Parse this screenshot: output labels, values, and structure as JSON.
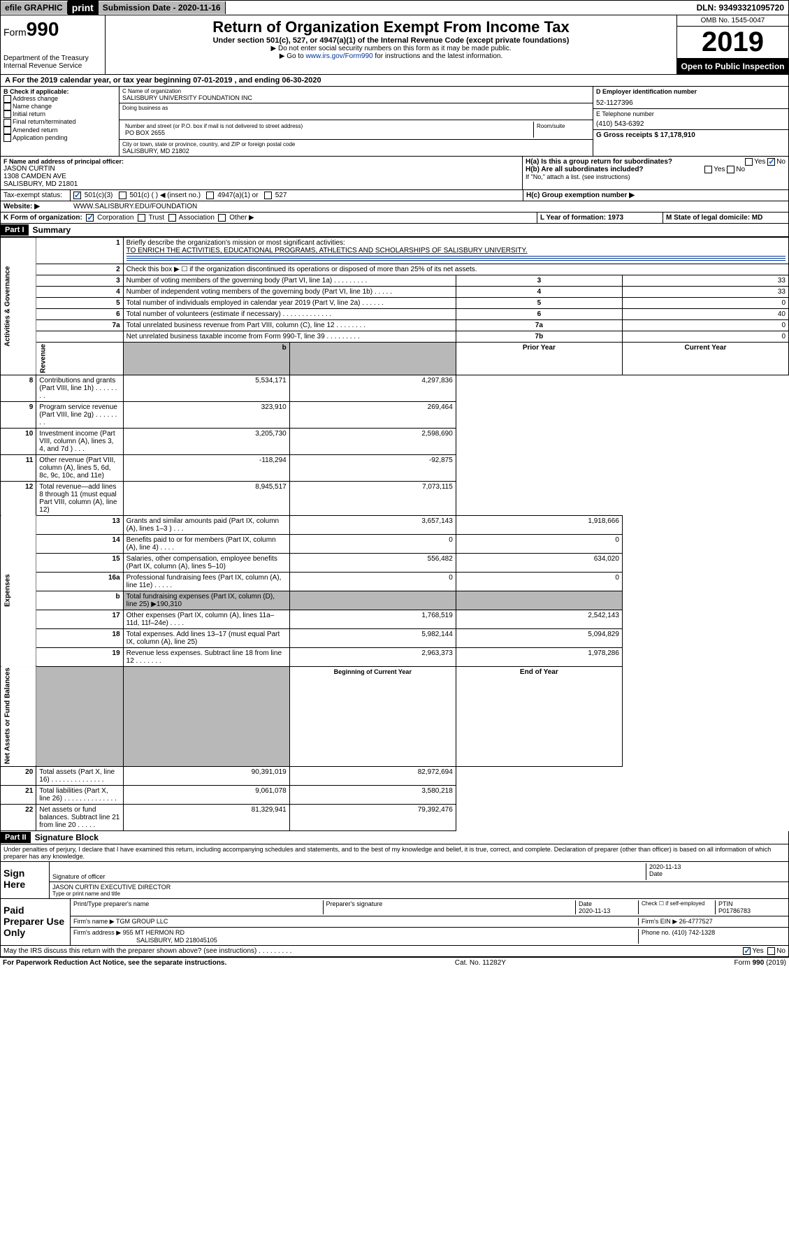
{
  "topbar": {
    "efile": "efile GRAPHIC",
    "print": "print",
    "submission": "Submission Date - 2020-11-16",
    "dln": "DLN: 93493321095720"
  },
  "header": {
    "form_prefix": "Form",
    "form_num": "990",
    "dept": "Department of the Treasury Internal Revenue Service",
    "title": "Return of Organization Exempt From Income Tax",
    "subtitle": "Under section 501(c), 527, or 4947(a)(1) of the Internal Revenue Code (except private foundations)",
    "note1": "▶ Do not enter social security numbers on this form as it may be made public.",
    "note2_pre": "▶ Go to ",
    "note2_link": "www.irs.gov/Form990",
    "note2_post": " for instructions and the latest information.",
    "omb": "OMB No. 1545-0047",
    "year": "2019",
    "open": "Open to Public Inspection"
  },
  "period": "A For the 2019 calendar year, or tax year beginning 07-01-2019    , and ending 06-30-2020",
  "checkboxes": {
    "title": "B Check if applicable:",
    "items": [
      "Address change",
      "Name change",
      "Initial return",
      "Final return/terminated",
      "Amended return",
      "Application pending"
    ]
  },
  "org": {
    "name_label": "C Name of organization",
    "name": "SALISBURY UNIVERSITY FOUNDATION INC",
    "dba_label": "Doing business as",
    "addr_label": "Number and street (or P.O. box if mail is not delivered to street address)",
    "room_label": "Room/suite",
    "addr": "PO BOX 2655",
    "city_label": "City or town, state or province, country, and ZIP or foreign postal code",
    "city": "SALISBURY, MD  21802"
  },
  "right": {
    "ein_label": "D Employer identification number",
    "ein": "52-1127396",
    "phone_label": "E Telephone number",
    "phone": "(410) 543-6392",
    "gross_label": "G Gross receipts $ 17,178,910"
  },
  "officer": {
    "label": "F  Name and address of principal officer:",
    "name": "JASON CURTIN",
    "addr1": "1308 CAMDEN AVE",
    "addr2": "SALISBURY, MD  21801"
  },
  "h": {
    "a": "H(a)  Is this a group return for subordinates?",
    "b": "H(b)  Are all subordinates included?",
    "note": "If \"No,\" attach a list. (see instructions)",
    "c": "H(c)  Group exemption number ▶"
  },
  "status": {
    "label": "Tax-exempt status:",
    "opt1": "501(c)(3)",
    "opt2": "501(c) (  ) ◀ (insert no.)",
    "opt3": "4947(a)(1) or",
    "opt4": "527"
  },
  "website": {
    "label": "Website: ▶",
    "value": "WWW.SALISBURY.EDU/FOUNDATION"
  },
  "k": {
    "label": "K Form of organization:",
    "opts": [
      "Corporation",
      "Trust",
      "Association",
      "Other ▶"
    ]
  },
  "l": {
    "label": "L Year of formation: 1973"
  },
  "m": {
    "label": "M State of legal domicile: MD"
  },
  "part1": {
    "header": "Part I",
    "title": "Summary",
    "q1": "Briefly describe the organization's mission or most significant activities:",
    "mission": "TO ENRICH THE ACTIVITIES, EDUCATIONAL PROGRAMS, ATHLETICS AND SCHOLARSHIPS OF SALISBURY UNIVERSITY.",
    "q2": "Check this box ▶ ☐  if the organization discontinued its operations or disposed of more than 25% of its net assets.",
    "rows_gov": [
      {
        "n": "3",
        "t": "Number of voting members of the governing body (Part VI, line 1a)   .   .   .   .   .   .   .   .   .",
        "rn": "3",
        "v": "33"
      },
      {
        "n": "4",
        "t": "Number of independent voting members of the governing body (Part VI, line 1b)   .   .   .   .   .",
        "rn": "4",
        "v": "33"
      },
      {
        "n": "5",
        "t": "Total number of individuals employed in calendar year 2019 (Part V, line 2a)   .   .   .   .   .   .",
        "rn": "5",
        "v": "0"
      },
      {
        "n": "6",
        "t": "Total number of volunteers (estimate if necessary)   .   .   .   .   .   .   .   .   .   .   .   .   .",
        "rn": "6",
        "v": "40"
      },
      {
        "n": "7a",
        "t": "Total unrelated business revenue from Part VIII, column (C), line 12   .   .   .   .   .   .   .   .",
        "rn": "7a",
        "v": "0"
      },
      {
        "n": "",
        "t": "Net unrelated business taxable income from Form 990-T, line 39   .   .   .   .   .   .   .   .   .",
        "rn": "7b",
        "v": "0"
      }
    ],
    "prior_hdr": "Prior Year",
    "current_hdr": "Current Year",
    "rows_rev": [
      {
        "n": "8",
        "t": "Contributions and grants (Part VIII, line 1h)   .   .   .   .   .   .   .   .",
        "p": "5,534,171",
        "c": "4,297,836"
      },
      {
        "n": "9",
        "t": "Program service revenue (Part VIII, line 2g)   .   .   .   .   .   .   .   .",
        "p": "323,910",
        "c": "269,464"
      },
      {
        "n": "10",
        "t": "Investment income (Part VIII, column (A), lines 3, 4, and 7d )   .   .   .",
        "p": "3,205,730",
        "c": "2,598,690"
      },
      {
        "n": "11",
        "t": "Other revenue (Part VIII, column (A), lines 5, 6d, 8c, 9c, 10c, and 11e)",
        "p": "-118,294",
        "c": "-92,875"
      },
      {
        "n": "12",
        "t": "Total revenue—add lines 8 through 11 (must equal Part VIII, column (A), line 12)",
        "p": "8,945,517",
        "c": "7,073,115"
      }
    ],
    "rows_exp": [
      {
        "n": "13",
        "t": "Grants and similar amounts paid (Part IX, column (A), lines 1–3 )   .   .   .",
        "p": "3,657,143",
        "c": "1,918,666"
      },
      {
        "n": "14",
        "t": "Benefits paid to or for members (Part IX, column (A), line 4)   .   .   .   .",
        "p": "0",
        "c": "0"
      },
      {
        "n": "15",
        "t": "Salaries, other compensation, employee benefits (Part IX, column (A), lines 5–10)",
        "p": "556,482",
        "c": "634,020"
      },
      {
        "n": "16a",
        "t": "Professional fundraising fees (Part IX, column (A), line 11e)   .   .   .   .   .",
        "p": "0",
        "c": "0"
      },
      {
        "n": "b",
        "t": "Total fundraising expenses (Part IX, column (D), line 25) ▶190,310",
        "p": "",
        "c": ""
      },
      {
        "n": "17",
        "t": "Other expenses (Part IX, column (A), lines 11a–11d, 11f–24e)   .   .   .   .",
        "p": "1,768,519",
        "c": "2,542,143"
      },
      {
        "n": "18",
        "t": "Total expenses. Add lines 13–17 (must equal Part IX, column (A), line 25)",
        "p": "5,982,144",
        "c": "5,094,829"
      },
      {
        "n": "19",
        "t": "Revenue less expenses. Subtract line 18 from line 12   .   .   .   .   .   .   .",
        "p": "2,963,373",
        "c": "1,978,286"
      }
    ],
    "beg_hdr": "Beginning of Current Year",
    "end_hdr": "End of Year",
    "rows_net": [
      {
        "n": "20",
        "t": "Total assets (Part X, line 16)   .   .   .   .   .   .   .   .   .   .   .   .   .   .",
        "p": "90,391,019",
        "c": "82,972,694"
      },
      {
        "n": "21",
        "t": "Total liabilities (Part X, line 26)   .   .   .   .   .   .   .   .   .   .   .   .   .   .",
        "p": "9,061,078",
        "c": "3,580,218"
      },
      {
        "n": "22",
        "t": "Net assets or fund balances. Subtract line 21 from line 20   .   .   .   .   .",
        "p": "81,329,941",
        "c": "79,392,476"
      }
    ]
  },
  "part2": {
    "header": "Part II",
    "title": "Signature Block",
    "penalty": "Under penalties of perjury, I declare that I have examined this return, including accompanying schedules and statements, and to the best of my knowledge and belief, it is true, correct, and complete. Declaration of preparer (other than officer) is based on all information of which preparer has any knowledge."
  },
  "sign": {
    "label": "Sign Here",
    "sig_label": "Signature of officer",
    "date": "2020-11-13",
    "date_label": "Date",
    "name": "JASON CURTIN  EXECUTIVE DIRECTOR",
    "name_label": "Type or print name and title"
  },
  "paid": {
    "label": "Paid Preparer Use Only",
    "h1": "Print/Type preparer's name",
    "h2": "Preparer's signature",
    "h3": "Date",
    "h4": "Check ☐ if self-employed",
    "h5": "PTIN",
    "date": "2020-11-13",
    "ptin": "P01786783",
    "firm_label": "Firm's name    ▶",
    "firm": "TGM GROUP LLC",
    "ein_label": "Firm's EIN ▶",
    "ein": "26-4777527",
    "addr_label": "Firm's address ▶",
    "addr1": "955 MT HERMON RD",
    "addr2": "SALISBURY, MD  218045105",
    "phone_label": "Phone no.",
    "phone": "(410) 742-1328"
  },
  "footer": {
    "discuss": "May the IRS discuss this return with the preparer shown above? (see instructions)   .   .   .   .   .   .   .   .   .",
    "paperwork": "For Paperwork Reduction Act Notice, see the separate instructions.",
    "cat": "Cat. No. 11282Y",
    "form": "Form 990 (2019)"
  },
  "side_labels": {
    "gov": "Activities & Governance",
    "rev": "Revenue",
    "exp": "Expenses",
    "net": "Net Assets or Fund Balances"
  },
  "yes": "Yes",
  "no": "No"
}
